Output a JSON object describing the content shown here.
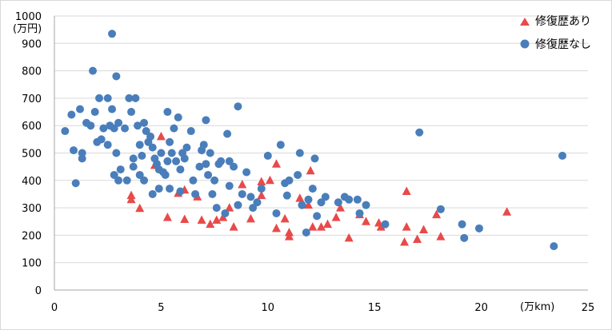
{
  "chart_data": {
    "type": "scatter",
    "y_unit_label": "(万円)",
    "x_unit_label": "(万km)",
    "xlim": [
      0,
      25
    ],
    "ylim": [
      0,
      1000
    ],
    "x_ticks": [
      0,
      5,
      10,
      15,
      20,
      25
    ],
    "y_ticks": [
      0,
      100,
      200,
      300,
      400,
      500,
      600,
      700,
      800,
      900,
      1000
    ],
    "grid": "horizontal",
    "legend_position": "top-right",
    "series": [
      {
        "name": "修復歴あり",
        "marker": "triangle",
        "color": "#e84a4a",
        "points": [
          [
            3.6,
            345
          ],
          [
            3.6,
            330
          ],
          [
            4.0,
            298
          ],
          [
            4.7,
            455
          ],
          [
            5.0,
            560
          ],
          [
            5.3,
            265
          ],
          [
            5.8,
            353
          ],
          [
            6.1,
            258
          ],
          [
            6.1,
            365
          ],
          [
            6.7,
            340
          ],
          [
            6.9,
            255
          ],
          [
            7.3,
            240
          ],
          [
            7.6,
            255
          ],
          [
            7.9,
            265
          ],
          [
            8.2,
            300
          ],
          [
            8.4,
            230
          ],
          [
            8.8,
            385
          ],
          [
            9.2,
            260
          ],
          [
            9.7,
            395
          ],
          [
            9.7,
            345
          ],
          [
            10.1,
            400
          ],
          [
            10.4,
            460
          ],
          [
            10.4,
            225
          ],
          [
            10.8,
            260
          ],
          [
            11.0,
            210
          ],
          [
            11.0,
            195
          ],
          [
            11.5,
            335
          ],
          [
            11.9,
            310
          ],
          [
            12.0,
            435
          ],
          [
            12.1,
            230
          ],
          [
            12.5,
            230
          ],
          [
            12.8,
            240
          ],
          [
            13.2,
            265
          ],
          [
            13.4,
            300
          ],
          [
            13.8,
            190
          ],
          [
            14.3,
            275
          ],
          [
            14.6,
            250
          ],
          [
            15.2,
            245
          ],
          [
            15.3,
            230
          ],
          [
            16.4,
            175
          ],
          [
            16.5,
            360
          ],
          [
            16.5,
            230
          ],
          [
            17.0,
            185
          ],
          [
            17.3,
            220
          ],
          [
            17.9,
            275
          ],
          [
            18.1,
            195
          ],
          [
            21.2,
            285
          ]
        ]
      },
      {
        "name": "修復歴なし",
        "marker": "circle",
        "color": "#4a7ebb",
        "points": [
          [
            0.5,
            580
          ],
          [
            0.8,
            640
          ],
          [
            0.9,
            510
          ],
          [
            1.0,
            390
          ],
          [
            1.2,
            660
          ],
          [
            1.3,
            480
          ],
          [
            1.3,
            500
          ],
          [
            1.5,
            610
          ],
          [
            1.7,
            600
          ],
          [
            1.8,
            800
          ],
          [
            1.9,
            650
          ],
          [
            2.0,
            540
          ],
          [
            2.1,
            700
          ],
          [
            2.2,
            550
          ],
          [
            2.3,
            590
          ],
          [
            2.5,
            700
          ],
          [
            2.5,
            530
          ],
          [
            2.6,
            600
          ],
          [
            2.7,
            935
          ],
          [
            2.7,
            660
          ],
          [
            2.8,
            590
          ],
          [
            2.9,
            780
          ],
          [
            2.8,
            420
          ],
          [
            2.9,
            500
          ],
          [
            3.0,
            610
          ],
          [
            3.0,
            400
          ],
          [
            3.1,
            440
          ],
          [
            3.3,
            590
          ],
          [
            3.4,
            400
          ],
          [
            3.5,
            700
          ],
          [
            3.6,
            650
          ],
          [
            3.7,
            480
          ],
          [
            3.7,
            450
          ],
          [
            3.8,
            700
          ],
          [
            3.9,
            600
          ],
          [
            4.0,
            530
          ],
          [
            4.0,
            420
          ],
          [
            4.1,
            490
          ],
          [
            4.2,
            610
          ],
          [
            4.2,
            400
          ],
          [
            4.3,
            580
          ],
          [
            4.4,
            540
          ],
          [
            4.5,
            560
          ],
          [
            4.6,
            520
          ],
          [
            4.6,
            350
          ],
          [
            4.7,
            480
          ],
          [
            4.8,
            460
          ],
          [
            4.9,
            440
          ],
          [
            4.9,
            370
          ],
          [
            5.0,
            500
          ],
          [
            5.1,
            430
          ],
          [
            5.2,
            420
          ],
          [
            5.3,
            650
          ],
          [
            5.3,
            470
          ],
          [
            5.4,
            540
          ],
          [
            5.4,
            370
          ],
          [
            5.5,
            500
          ],
          [
            5.6,
            590
          ],
          [
            5.7,
            470
          ],
          [
            5.8,
            630
          ],
          [
            5.9,
            440
          ],
          [
            5.9,
            360
          ],
          [
            6.0,
            500
          ],
          [
            6.1,
            480
          ],
          [
            6.2,
            520
          ],
          [
            6.4,
            580
          ],
          [
            6.5,
            400
          ],
          [
            6.6,
            350
          ],
          [
            6.8,
            450
          ],
          [
            6.9,
            510
          ],
          [
            7.0,
            530
          ],
          [
            7.1,
            620
          ],
          [
            7.1,
            460
          ],
          [
            7.2,
            420
          ],
          [
            7.3,
            500
          ],
          [
            7.4,
            350
          ],
          [
            7.5,
            400
          ],
          [
            7.6,
            300
          ],
          [
            7.7,
            460
          ],
          [
            7.8,
            470
          ],
          [
            8.0,
            280
          ],
          [
            8.1,
            570
          ],
          [
            8.2,
            470
          ],
          [
            8.2,
            380
          ],
          [
            8.4,
            450
          ],
          [
            8.6,
            670
          ],
          [
            8.6,
            310
          ],
          [
            8.8,
            350
          ],
          [
            9.0,
            430
          ],
          [
            9.2,
            340
          ],
          [
            9.3,
            300
          ],
          [
            9.5,
            320
          ],
          [
            9.7,
            370
          ],
          [
            10.0,
            490
          ],
          [
            10.4,
            280
          ],
          [
            10.6,
            530
          ],
          [
            10.8,
            390
          ],
          [
            10.9,
            345
          ],
          [
            11.0,
            400
          ],
          [
            11.4,
            420
          ],
          [
            11.5,
            500
          ],
          [
            11.6,
            310
          ],
          [
            11.8,
            210
          ],
          [
            11.9,
            330
          ],
          [
            12.1,
            370
          ],
          [
            12.2,
            480
          ],
          [
            12.3,
            270
          ],
          [
            12.5,
            320
          ],
          [
            12.7,
            340
          ],
          [
            13.3,
            320
          ],
          [
            13.6,
            340
          ],
          [
            13.8,
            330
          ],
          [
            14.2,
            330
          ],
          [
            14.3,
            280
          ],
          [
            14.6,
            310
          ],
          [
            15.5,
            240
          ],
          [
            17.1,
            575
          ],
          [
            18.1,
            295
          ],
          [
            19.1,
            240
          ],
          [
            19.2,
            190
          ],
          [
            19.9,
            225
          ],
          [
            23.4,
            160
          ],
          [
            23.8,
            490
          ]
        ]
      }
    ]
  }
}
